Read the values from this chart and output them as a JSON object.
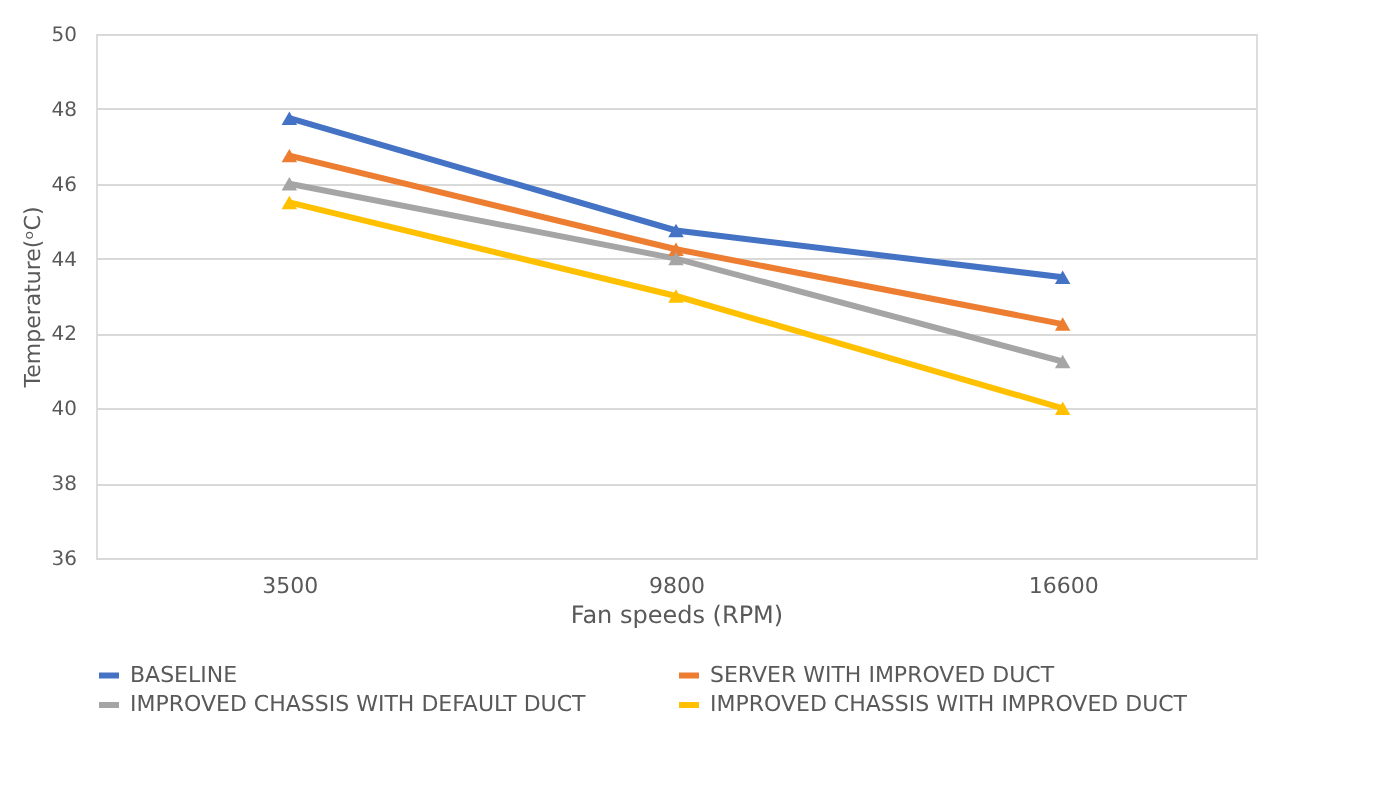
{
  "chart_data": {
    "type": "line",
    "xlabel": "Fan speeds (RPM)",
    "ylabel": "Temperature(ᵒC)",
    "categories": [
      "3500",
      "9800",
      "16600"
    ],
    "series": [
      {
        "name": "BASELINE",
        "color": "#4472c4",
        "values": [
          47.75,
          44.75,
          43.5
        ]
      },
      {
        "name": "SERVER WITH IMPROVED DUCT",
        "color": "#ed7d31",
        "values": [
          46.75,
          44.25,
          42.25
        ]
      },
      {
        "name": "IMPROVED CHASSIS WITH DEFAULT DUCT",
        "color": "#a5a5a5",
        "values": [
          46,
          44,
          41.25
        ]
      },
      {
        "name": "IMPROVED CHASSIS WITH IMPROVED DUCT",
        "color": "#ffc000",
        "values": [
          45.5,
          43,
          40
        ]
      }
    ],
    "ylim": [
      36,
      50
    ],
    "yticks": [
      36,
      38,
      40,
      42,
      44,
      46,
      48,
      50
    ],
    "grid": "y",
    "legend": "bottom",
    "marker": "triangle",
    "line_style": "solid"
  }
}
